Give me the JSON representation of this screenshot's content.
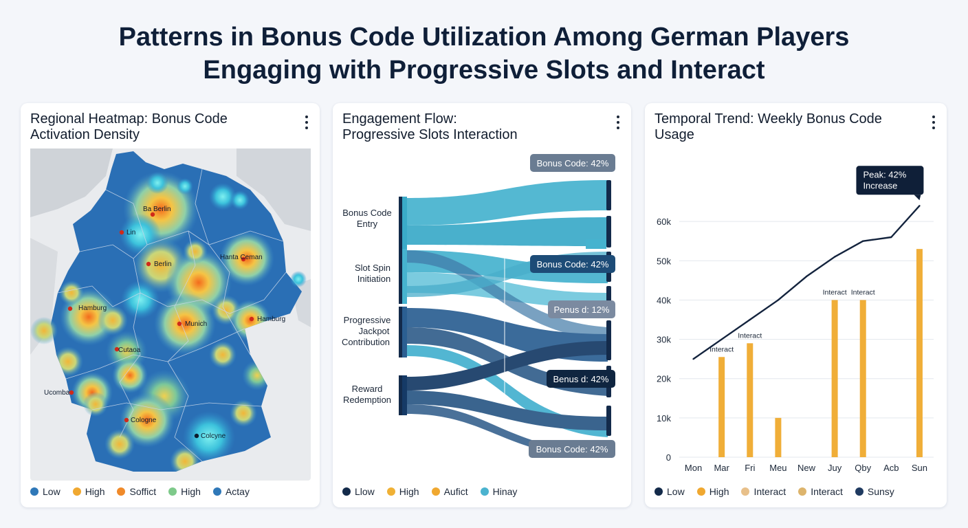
{
  "header": {
    "title_line1": "Patterns in Bonus Code Utilization Among German Players",
    "title_line2": "Engaging with Progressive Slots and Interact"
  },
  "panels": {
    "heatmap": {
      "title_line1": "Regional Heatmap: Bonus Code",
      "title_line2": "Activation Density",
      "legend": [
        {
          "label": "Low",
          "color": "#2f78b8"
        },
        {
          "label": "High",
          "color": "#f0a830"
        },
        {
          "label": "Soffict",
          "color": "#f08a2a"
        },
        {
          "label": "High",
          "color": "#7ec98a"
        },
        {
          "label": "Actay",
          "color": "#2f78b8"
        }
      ]
    },
    "flow": {
      "title_line1": "Engagement Flow:",
      "title_line2": "Progressive Slots Interaction",
      "legend": [
        {
          "label": "Llow",
          "color": "#132a4a"
        },
        {
          "label": "High",
          "color": "#f0b135"
        },
        {
          "label": "Aufict",
          "color": "#f0a830"
        },
        {
          "label": "Hinay",
          "color": "#4bb3cf"
        }
      ]
    },
    "trend": {
      "title_line1": "Temporal Trend: Weekly Bonus Code",
      "title_line2": "Usage",
      "legend": [
        {
          "label": "Low",
          "color": "#132a4a"
        },
        {
          "label": "High",
          "color": "#f0a830"
        },
        {
          "label": "Interact",
          "color": "#e8c08a"
        },
        {
          "label": "Interact",
          "color": "#ddb46c"
        },
        {
          "label": "Sunsy",
          "color": "#1f3a60"
        }
      ]
    }
  },
  "chart_data": [
    {
      "type": "heatmap",
      "title": "Regional Heatmap: Bonus Code Activation Density",
      "region": "Germany",
      "city_labels": [
        "Ba Berlin",
        "Lin",
        "Berlin",
        "Hanta Ceman",
        "Hamburg",
        "Munich",
        "Hamburg",
        "Cutaoa",
        "Ucomba",
        "Cologne",
        "Colcyne"
      ],
      "hotspots": [
        {
          "label": "Ba Berlin",
          "intensity": 0.9
        },
        {
          "label": "Lin",
          "intensity": 0.4
        },
        {
          "label": "Berlin",
          "intensity": 0.7
        },
        {
          "label": "Hanta Ceman",
          "intensity": 0.85
        },
        {
          "label": "Hamburg",
          "intensity": 0.9
        },
        {
          "label": "Munich",
          "intensity": 0.85
        },
        {
          "label": "Hamburg",
          "intensity": 0.6
        },
        {
          "label": "Cutaoa",
          "intensity": 0.5
        },
        {
          "label": "Ucomba",
          "intensity": 0.75
        },
        {
          "label": "Cologne",
          "intensity": 0.85
        },
        {
          "label": "Colcyne",
          "intensity": 0.6
        }
      ]
    },
    {
      "type": "sankey",
      "title": "Engagement Flow: Progressive Slots Interaction",
      "sources": [
        {
          "label": "Bonus Code Entry",
          "label_lines": [
            "Bonus Code",
            "Entry"
          ]
        },
        {
          "label": "Slot Spin Initiation",
          "label_lines": [
            "Slot Spin",
            "Initiation"
          ]
        },
        {
          "label": "Progressive Jackpot Contribution",
          "label_lines": [
            "Progressive",
            "Jackpot",
            "Contribution"
          ]
        },
        {
          "label": "Reward Redemption",
          "label_lines": [
            "Reward",
            "Redemption"
          ]
        }
      ],
      "targets": [
        {
          "label": "Bonus Code: 42%",
          "value": 42
        },
        {
          "label": "Bonus Code: 42%",
          "value": 42
        },
        {
          "label": "Penus d: 12%",
          "value": 12
        },
        {
          "label": "Benus d: 42%",
          "value": 42
        },
        {
          "label": "Bonus Code: 42%",
          "value": 42
        }
      ]
    },
    {
      "type": "bar",
      "title": "Temporal Trend: Weekly Bonus Code Usage",
      "categories": [
        "Mon",
        "Mar",
        "Fri",
        "Meu",
        "New",
        "Juy",
        "Qby",
        "Acb",
        "Sun"
      ],
      "series": [
        {
          "values": [
            0,
            25500,
            29000,
            10000,
            0,
            40000,
            40000,
            0,
            53000
          ]
        },
        {
          "values": [
            25000,
            30000,
            35000,
            40000,
            46000,
            51000,
            55000,
            56000,
            64000
          ]
        }
      ],
      "bar_labels": [
        {
          "category": "Mar",
          "text": "Interact"
        },
        {
          "category": "Fri",
          "text": "Interact"
        },
        {
          "category": "Juy",
          "text": "Interact"
        },
        {
          "category": "Qby",
          "text": "Interact"
        }
      ],
      "annotation": {
        "category": "Sun",
        "text_line1": "Peak: 42%",
        "text_line2": "Increase"
      },
      "yticks": [
        0,
        10000,
        20000,
        30000,
        40000,
        50000,
        60000
      ],
      "ytick_labels": [
        "0",
        "10k",
        "20k",
        "30k",
        "40k",
        "50k",
        "60k"
      ],
      "ylim": [
        0,
        70000
      ],
      "grid": true
    }
  ]
}
